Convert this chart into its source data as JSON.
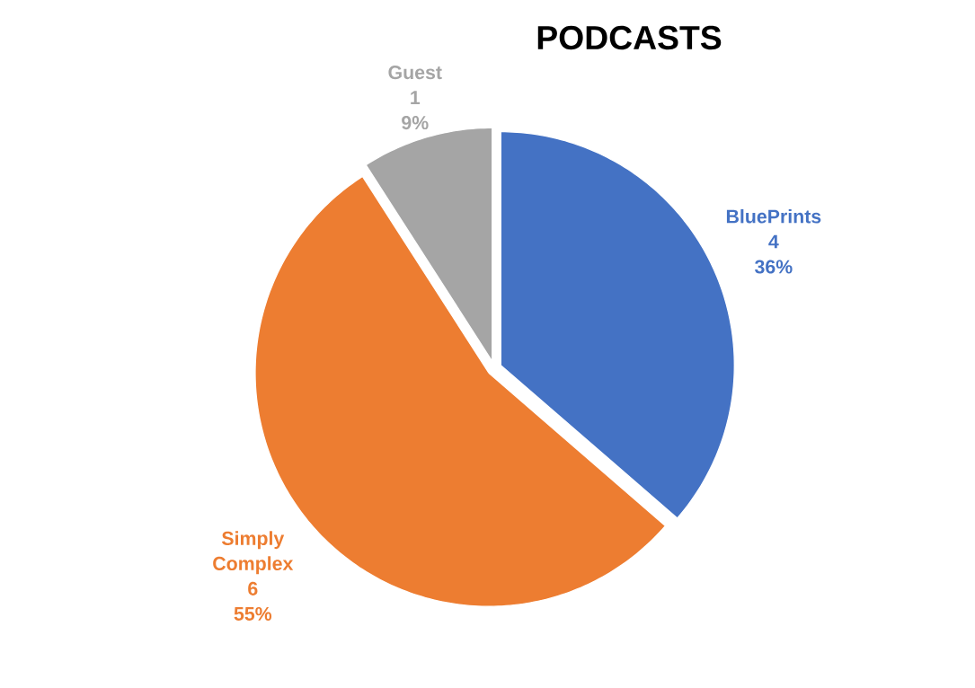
{
  "chart_data": {
    "type": "pie",
    "title": "PODCASTS",
    "categories": [
      "BluePrints",
      "Simply Complex",
      "Guest"
    ],
    "values": [
      4,
      6,
      1
    ],
    "colors": [
      "#4472c4",
      "#ed7d31",
      "#a5a5a5"
    ],
    "data_labels": true,
    "annotations": [
      "36%",
      "55%",
      "9%"
    ]
  }
}
